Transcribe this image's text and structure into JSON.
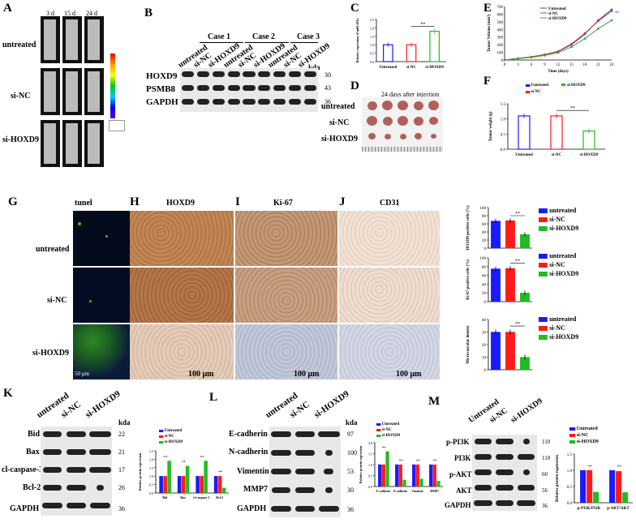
{
  "panels": {
    "A": "A",
    "B": "B",
    "C": "C",
    "D": "D",
    "E": "E",
    "F": "F",
    "G": "G",
    "H": "H",
    "I": "I",
    "J": "J",
    "K": "K",
    "L": "L",
    "M": "M"
  },
  "panelA": {
    "timepoints": [
      "3 d",
      "15 d",
      "24 d"
    ],
    "rows": [
      "untreated",
      "si-NC",
      "si-HOXD9"
    ]
  },
  "panelB": {
    "cases": [
      "Case 1",
      "Case 2",
      "Case 3"
    ],
    "lanes": [
      "untreated",
      "si-NC",
      "si-HOXD9",
      "untreated",
      "si-NC",
      "si-HOXD9",
      "untreated",
      "si-NC",
      "si-HOXD9"
    ],
    "proteins": [
      "HOXD9",
      "PSMB8",
      "GAPDH"
    ],
    "kda_header": "kda",
    "kda": [
      "30",
      "43",
      "36"
    ]
  },
  "panelD": {
    "title": "24 days after injection",
    "rows": [
      "untreated",
      "si-NC",
      "si-HOXD9"
    ]
  },
  "panelG": {
    "title": "tunel",
    "scale": "50 μm"
  },
  "panelH": {
    "title": "HOXD9",
    "scale": "100 μm"
  },
  "panelI": {
    "title": "Ki-67",
    "scale": "100 μm"
  },
  "panelJ": {
    "title": "CD31",
    "scale": "100 μm"
  },
  "ihc_rows": [
    "untreated",
    "si-NC",
    "si-HOXD9"
  ],
  "legend": {
    "untreated": "untreated",
    "sinc": "si-NC",
    "sihoxd9": "si-HOXD9"
  },
  "legendCap": {
    "untreated": "Untreated",
    "sinc": "si-NC",
    "sihoxd9": "si-HOXD9"
  },
  "colors": {
    "blue": "#1a1aff",
    "red": "#ff1a1a",
    "green": "#22bb22"
  },
  "sig": "**",
  "panelK": {
    "lanes": [
      "untreated",
      "si-NC",
      "si-HOXD9"
    ],
    "proteins": [
      "Bid",
      "Bax",
      "cl-caspase-3",
      "Bcl-2",
      "GAPDH"
    ],
    "kda_header": "kda",
    "kda": [
      "22",
      "21",
      "17",
      "26",
      "36"
    ]
  },
  "panelL": {
    "lanes": [
      "untreated",
      "si-NC",
      "si-HOXD9"
    ],
    "proteins": [
      "E-cadherin",
      "N-cadherin",
      "Vimentin",
      "MMP7",
      "GAPDH"
    ],
    "kda_header": "kda",
    "kda": [
      "97",
      "100",
      "53",
      "30",
      "36"
    ]
  },
  "panelM": {
    "lanes": [
      "Untreated",
      "si-NC",
      "si-HOXD9"
    ],
    "proteins": [
      "p-PI3K",
      "PI3K",
      "p-AKT",
      "AKT",
      "GAPDH"
    ],
    "kda": [
      "110",
      "110",
      "60",
      "56",
      "36"
    ]
  },
  "chart_data": [
    {
      "id": "C",
      "type": "bar",
      "ylabel": "Relative expression of miR-491a",
      "categories": [
        "Untreated",
        "si-NC",
        "si-HOXD9"
      ],
      "values": [
        1.0,
        1.0,
        1.8
      ],
      "ylim": [
        0,
        2.5
      ],
      "yticks": [
        "0.0",
        "0.5",
        "1.0",
        "1.5",
        "2.0",
        "2.5"
      ]
    },
    {
      "id": "E",
      "type": "line",
      "xlabel": "Time (days)",
      "ylabel": "Tumor Volume (mm³)",
      "x": [
        0,
        3,
        6,
        9,
        12,
        15,
        18,
        21,
        24
      ],
      "xlim": [
        0,
        24
      ],
      "ylim": [
        0,
        700
      ],
      "yticks": [
        "0",
        "100",
        "200",
        "300",
        "400",
        "500",
        "600",
        "700"
      ],
      "series": [
        {
          "name": "Untreated",
          "values": [
            0,
            20,
            40,
            70,
            110,
            200,
            340,
            520,
            660
          ]
        },
        {
          "name": "si-NC",
          "values": [
            0,
            22,
            42,
            72,
            115,
            210,
            350,
            510,
            640
          ]
        },
        {
          "name": "si-HOXD9",
          "values": [
            0,
            18,
            35,
            60,
            95,
            170,
            280,
            410,
            520
          ]
        }
      ]
    },
    {
      "id": "F",
      "type": "bar",
      "ylabel": "Tumor weight (g)",
      "categories": [
        "Untreated",
        "si-NC",
        "si-HOXD9"
      ],
      "values": [
        1.1,
        1.1,
        0.6
      ],
      "ylim": [
        0,
        1.5
      ],
      "yticks": [
        "0.0",
        "0.5",
        "1.0",
        "1.5"
      ]
    },
    {
      "id": "HOXD9ihc",
      "type": "bar",
      "ylabel": "HOXD9 positive cells (%)",
      "categories": [
        "untreated",
        "si-NC",
        "si-HOXD9"
      ],
      "values": [
        67,
        68,
        34
      ],
      "ylim": [
        0,
        100
      ],
      "yticks": [
        "0",
        "20",
        "40",
        "60",
        "80",
        "100"
      ]
    },
    {
      "id": "Ki67ihc",
      "type": "bar",
      "ylabel": "Ki-67 positive cells (%)",
      "categories": [
        "untreated",
        "si-NC",
        "si-HOXD9"
      ],
      "values": [
        75,
        76,
        20
      ],
      "ylim": [
        0,
        100
      ],
      "yticks": [
        "0",
        "20",
        "40",
        "60",
        "80",
        "100"
      ]
    },
    {
      "id": "CD31ihc",
      "type": "bar",
      "ylabel": "Microvascular density",
      "categories": [
        "untreated",
        "si-NC",
        "si-HOXD9"
      ],
      "values": [
        30,
        30,
        10
      ],
      "ylim": [
        0,
        40
      ],
      "yticks": [
        "0",
        "10",
        "20",
        "30",
        "40"
      ]
    },
    {
      "id": "K",
      "type": "bar",
      "ylabel": "Relative protein expression",
      "categories": [
        "Bid",
        "Bax",
        "cl-caspase-3",
        "Bcl-2"
      ],
      "ylim": [
        0,
        2.5
      ],
      "yticks": [
        "0.0",
        "0.5",
        "1.0",
        "1.5",
        "2.0",
        "2.5"
      ],
      "series": [
        {
          "name": "Untreated",
          "values": [
            1.0,
            1.0,
            1.0,
            1.0
          ]
        },
        {
          "name": "si-NC",
          "values": [
            1.0,
            1.0,
            1.0,
            1.0
          ]
        },
        {
          "name": "si-HOXD9",
          "values": [
            1.9,
            1.6,
            1.9,
            0.3
          ]
        }
      ]
    },
    {
      "id": "L",
      "type": "bar",
      "ylabel": "Relative protein expression",
      "categories": [
        "E-cadherin",
        "N-cadherin",
        "Vimentin",
        "MMP7"
      ],
      "ylim": [
        0,
        2.0
      ],
      "yticks": [
        "0.0",
        "0.5",
        "1.0",
        "1.5",
        "2.0"
      ],
      "series": [
        {
          "name": "Untreated",
          "values": [
            1.0,
            1.0,
            1.0,
            1.0
          ]
        },
        {
          "name": "si-NC",
          "values": [
            1.0,
            1.0,
            1.0,
            1.0
          ]
        },
        {
          "name": "si-HOXD9",
          "values": [
            1.6,
            0.3,
            0.35,
            0.25
          ]
        }
      ]
    },
    {
      "id": "M",
      "type": "bar",
      "ylabel": "Relative protein expression",
      "categories": [
        "p-PI3K/PI3K",
        "p-AKT/AKT"
      ],
      "ylim": [
        0,
        1.5
      ],
      "yticks": [
        "0.0",
        "0.5",
        "1.0",
        "1.5"
      ],
      "series": [
        {
          "name": "Untreated",
          "values": [
            1.0,
            1.0
          ]
        },
        {
          "name": "si-NC",
          "values": [
            1.0,
            0.97
          ]
        },
        {
          "name": "si-HOXD9",
          "values": [
            0.33,
            0.32
          ]
        }
      ]
    }
  ]
}
